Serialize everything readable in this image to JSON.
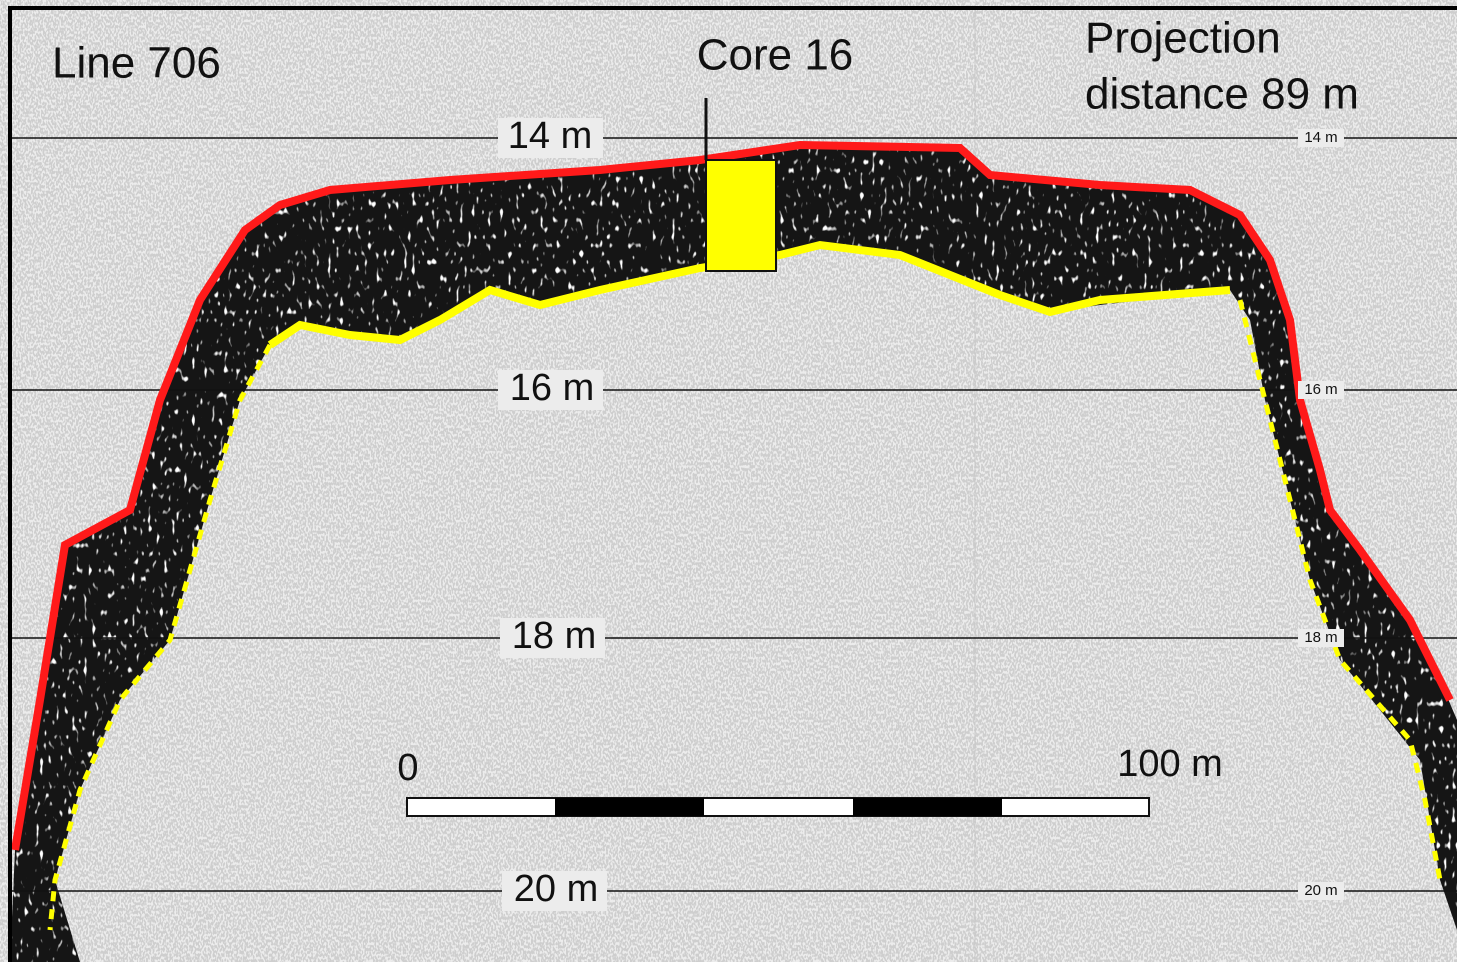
{
  "labels": {
    "line": "Line 706",
    "core": "Core 16",
    "projection": [
      "Projection",
      "distance 89 m"
    ]
  },
  "depths": [
    "14 m",
    "16 m",
    "18 m",
    "20 m"
  ],
  "scale_bar": {
    "start": "0",
    "end": "100 m"
  }
}
